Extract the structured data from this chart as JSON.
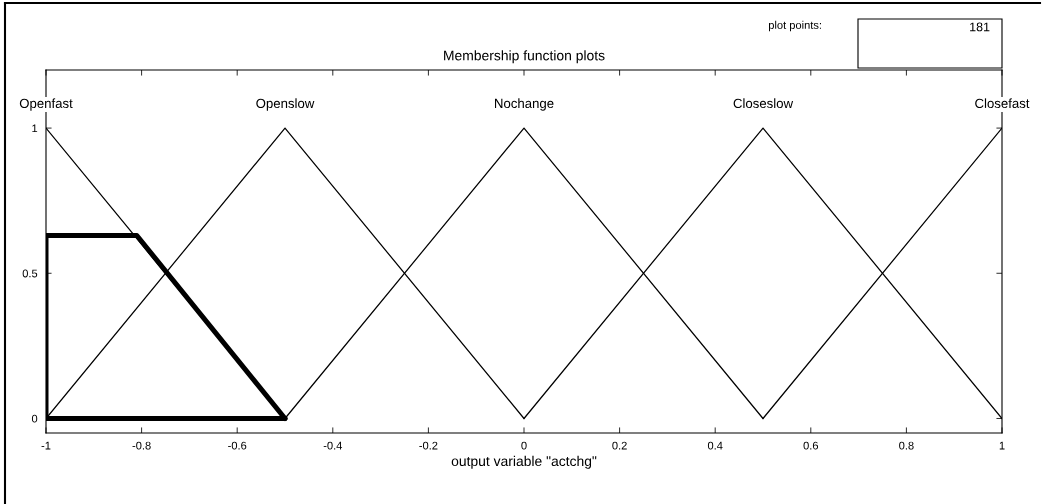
{
  "chart_data": {
    "type": "line",
    "title": "Membership function plots",
    "xlabel": "output variable \"actchg\"",
    "xlim": [
      -1,
      1
    ],
    "ylim": [
      -0.05,
      1.2
    ],
    "xticks": [
      -1,
      -0.8,
      -0.6,
      -0.4,
      -0.2,
      0,
      0.2,
      0.4,
      0.6,
      0.8,
      1
    ],
    "yticks": [
      0,
      0.5,
      1
    ],
    "grid": false,
    "legend": false,
    "annotations": [
      "plot points:",
      "181"
    ],
    "series": [
      {
        "name": "Openfast",
        "color": "#000000",
        "x": [
          -1,
          -0.5
        ],
        "values": [
          1,
          0
        ]
      },
      {
        "name": "Openslow",
        "color": "#000000",
        "x": [
          -1,
          -0.5,
          0
        ],
        "values": [
          0,
          1,
          0
        ]
      },
      {
        "name": "Nochange",
        "color": "#000000",
        "x": [
          -0.5,
          0,
          0.5
        ],
        "values": [
          0,
          1,
          0
        ]
      },
      {
        "name": "Closeslow",
        "color": "#000000",
        "x": [
          0,
          0.5,
          1
        ],
        "values": [
          0,
          1,
          0
        ]
      },
      {
        "name": "Closefast",
        "color": "#000000",
        "x": [
          0.5,
          1
        ],
        "values": [
          0,
          1
        ]
      },
      {
        "color": "#000000",
        "x": [
          -1,
          -1,
          -0.81,
          -0.5
        ],
        "values": [
          0,
          0.63,
          0.63,
          0
        ]
      },
      {
        "color": "#000000",
        "x": [
          -1,
          -0.5
        ],
        "values": [
          0,
          0
        ]
      }
    ]
  }
}
